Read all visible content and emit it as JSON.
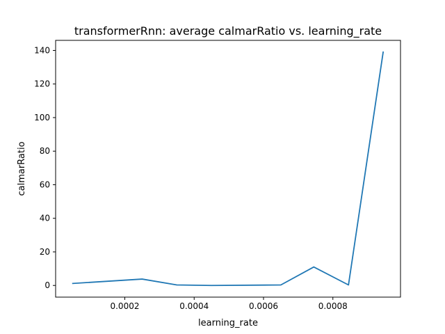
{
  "chart_data": {
    "type": "line",
    "title": "transformerRnn: average calmarRatio vs. learning_rate",
    "xlabel": "learning_rate",
    "ylabel": "calmarRatio",
    "xlim": [
      5e-07,
      0.000995
    ],
    "ylim": [
      -6.95,
      146.0
    ],
    "xticks": [
      0.0002,
      0.0004,
      0.0006,
      0.0008
    ],
    "xtick_labels": [
      "0.0002",
      "0.0004",
      "0.0006",
      "0.0008"
    ],
    "yticks": [
      0,
      20,
      40,
      60,
      80,
      100,
      120,
      140
    ],
    "ytick_labels": [
      "0",
      "20",
      "40",
      "60",
      "80",
      "100",
      "120",
      "140"
    ],
    "grid": false,
    "series": [
      {
        "color": "#1f77b4",
        "x": [
          5e-05,
          0.00025,
          0.00035,
          0.00045,
          0.00065,
          0.000745,
          0.000845,
          0.000945
        ],
        "y": [
          1.2,
          3.8,
          0.3,
          0.0,
          0.3,
          11.0,
          0.3,
          139.0
        ]
      }
    ]
  }
}
